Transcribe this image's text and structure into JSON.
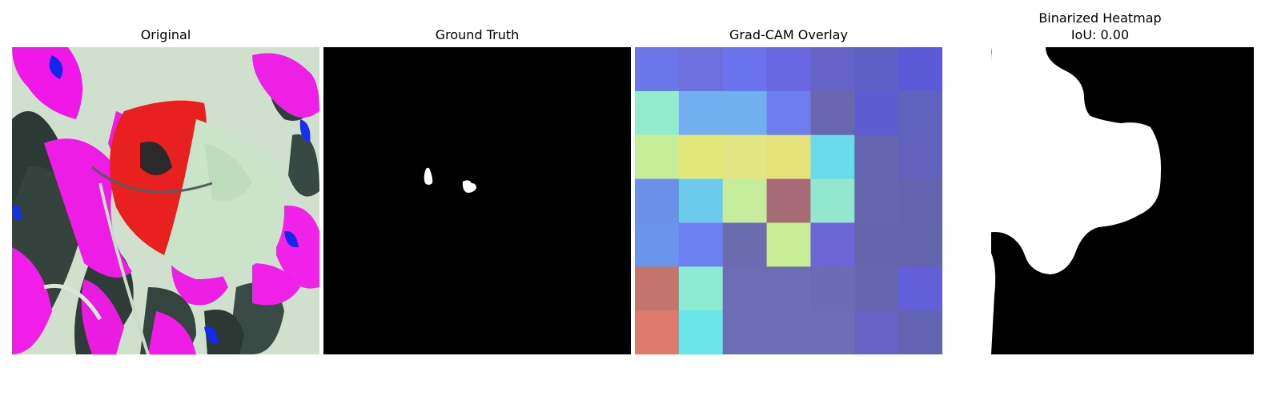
{
  "panels": [
    {
      "title": "Original"
    },
    {
      "title": "Ground Truth"
    },
    {
      "title": "Grad-CAM Overlay"
    },
    {
      "title": "Binarized Heatmap",
      "subtitle": "IoU: 0.00"
    }
  ],
  "colors": {
    "background": "#ffffff",
    "mask_background": "#000000",
    "mask_foreground": "#ffffff"
  },
  "gradcam_grid": [
    [
      "#6b76ea",
      "#6e6fdf",
      "#6b74ec",
      "#6966e2",
      "#6563c8",
      "#5f5fc6",
      "#5c59d7"
    ],
    [
      "#93ecce",
      "#72aef0",
      "#72aff0",
      "#6d7eef",
      "#6a67b0",
      "#5f5cd0",
      "#6162bd"
    ],
    [
      "#c6ee98",
      "#e4e87a",
      "#e2e684",
      "#e6e27a",
      "#6ad9ea",
      "#6565b0",
      "#6261bd"
    ],
    [
      "#6b90e8",
      "#6ccbed",
      "#c6ed9c",
      "#a86c78",
      "#92e7ce",
      "#6666ae",
      "#6563af"
    ],
    [
      "#6b95ea",
      "#6d80ef",
      "#6b6bb0",
      "#c8ed95",
      "#6a66d6",
      "#6565ae",
      "#6364ae"
    ],
    [
      "#c4766e",
      "#8cecd3",
      "#6b6eb2",
      "#6b6eb2",
      "#6a6bb2",
      "#6665b0",
      "#625fd9"
    ],
    [
      "#de7a6e",
      "#6ae5ea",
      "#6b6eb2",
      "#6b6eb2",
      "#6b6eb2",
      "#6563c3",
      "#6363b3"
    ]
  ]
}
